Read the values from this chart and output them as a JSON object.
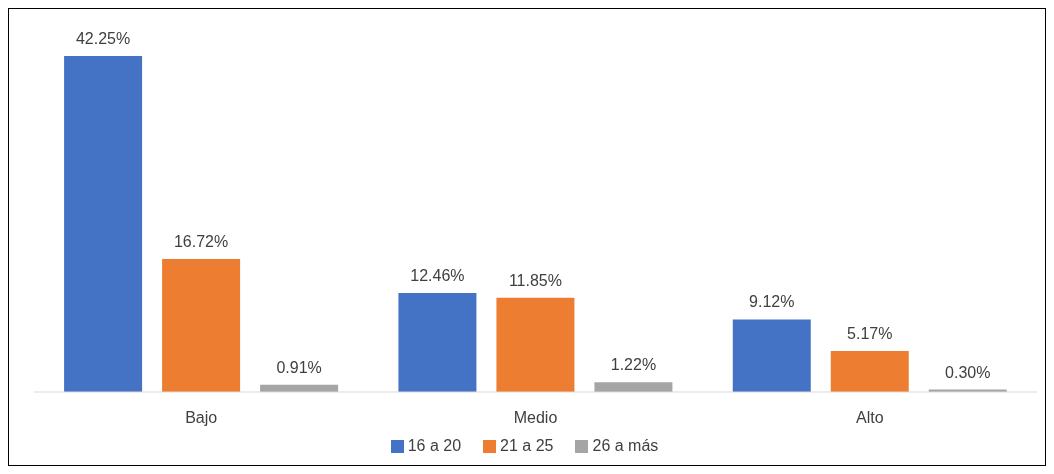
{
  "chart_data": {
    "type": "bar",
    "categories": [
      "Bajo",
      "Medio",
      "Alto"
    ],
    "series": [
      {
        "name": "16 a 20",
        "color": "#4472c4",
        "values": [
          42.25,
          12.46,
          9.12
        ],
        "value_labels": [
          "42.25%",
          "12.46%",
          "9.12%"
        ]
      },
      {
        "name": "21 a 25",
        "color": "#ed7d31",
        "values": [
          16.72,
          11.85,
          5.17
        ],
        "value_labels": [
          "16.72%",
          "11.85%",
          "5.17%"
        ]
      },
      {
        "name": "26 a más",
        "color": "#a5a5a5",
        "values": [
          0.91,
          1.22,
          0.3
        ],
        "value_labels": [
          "0.91%",
          "1.22%",
          "0.30%"
        ]
      }
    ],
    "legend": "bottom"
  }
}
